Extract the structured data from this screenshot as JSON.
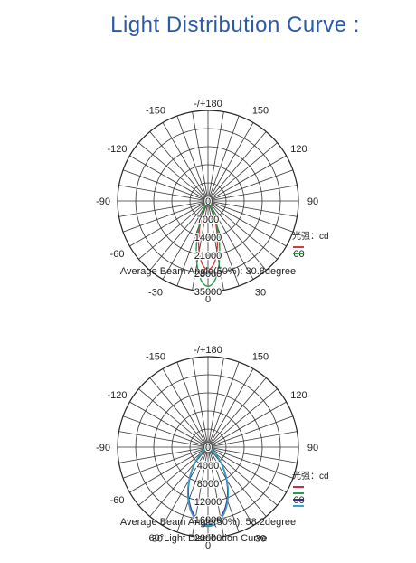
{
  "title": "Light Distribution Curve :",
  "chart_data": [
    {
      "type": "polar",
      "angle_labels": [
        "-/+180",
        "150",
        "-150",
        "120",
        "-120",
        "90",
        "-90",
        "60",
        "-60",
        "30",
        "-30",
        "0"
      ],
      "radial_ticks": [
        0,
        7000,
        14000,
        21000,
        28000,
        35000
      ],
      "radial_tick_labels": [
        "0",
        "7000",
        "14000",
        "21000",
        "28000",
        "35000"
      ],
      "rmax": 35000,
      "unit_label": "光强：cd",
      "series": [
        {
          "color": "#d23c3c",
          "half_angle_deg": 15.4,
          "peak": 26500,
          "shape": 1.6
        },
        {
          "color": "#2a9a4a",
          "half_angle_deg": 15.4,
          "peak": 33000,
          "shape": 1.45
        }
      ],
      "caption": "Average Beam Angle(50%): 30.8degree"
    },
    {
      "type": "polar",
      "angle_labels": [
        "-/+180",
        "150",
        "-150",
        "120",
        "-120",
        "90",
        "-90",
        "60",
        "-60",
        "30",
        "-30",
        "0"
      ],
      "radial_ticks": [
        0,
        4000,
        8000,
        12000,
        16000,
        20000
      ],
      "radial_tick_labels": [
        "0",
        "4000",
        "8000",
        "12000",
        "16000",
        "20000"
      ],
      "rmax": 20000,
      "unit_label": "光强：cd",
      "series": [
        {
          "color": "#c0304a",
          "half_angle_deg": 29.1,
          "peak": 17500,
          "shape": 1.25
        },
        {
          "color": "#2a9a4a",
          "half_angle_deg": 29.1,
          "peak": 17200,
          "shape": 1.2
        },
        {
          "color": "#3a2a90",
          "half_angle_deg": 29.1,
          "peak": 17000,
          "shape": 1.2
        },
        {
          "color": "#2aaad0",
          "half_angle_deg": 29.1,
          "peak": 17400,
          "shape": 1.15
        }
      ],
      "caption": "Average Beam Angle(50%): 58.2degree",
      "subcaption": "60°Light Distribution Curve"
    }
  ]
}
